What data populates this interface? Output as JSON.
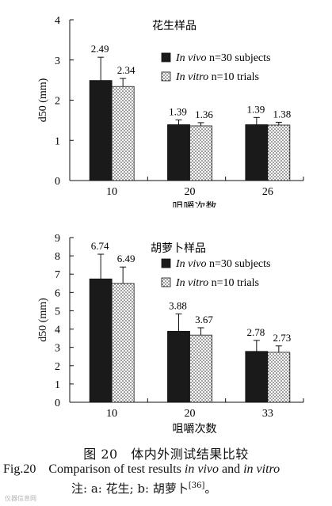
{
  "chart_data": [
    {
      "type": "bar",
      "title": "花生样品",
      "xlabel": "咀嚼次数",
      "ylabel": "d50 (mm)",
      "ylim": [
        0,
        4
      ],
      "yticks": [
        "0",
        "1",
        "2",
        "3",
        "4"
      ],
      "categories": [
        "10",
        "20",
        "26"
      ],
      "legend_position": "top-right",
      "series": [
        {
          "name": "In vivo n=30 subjects",
          "name_italic": "In vivo",
          "name_rest": " n=30 subjects",
          "fill": "solid",
          "color": "#1a1a1a",
          "values": [
            2.49,
            1.39,
            1.39
          ],
          "errors": [
            0.58,
            0.12,
            0.18
          ],
          "labels": [
            "2.49",
            "1.39",
            "1.39"
          ]
        },
        {
          "name": "In vitro n=10 trials",
          "name_italic": "In vitro",
          "name_rest": " n=10 trials",
          "fill": "dotted",
          "color": "#1a1a1a",
          "values": [
            2.34,
            1.36,
            1.38
          ],
          "errors": [
            0.2,
            0.08,
            0.07
          ],
          "labels": [
            "2.34",
            "1.36",
            "1.38"
          ]
        }
      ],
      "grid": false
    },
    {
      "type": "bar",
      "title": "胡萝卜样品",
      "xlabel": "咀嚼次数",
      "ylabel": "d50 (mm)",
      "ylim": [
        0,
        9
      ],
      "yticks": [
        "0",
        "1",
        "2",
        "3",
        "4",
        "5",
        "6",
        "7",
        "8",
        "9"
      ],
      "categories": [
        "10",
        "20",
        "33"
      ],
      "legend_position": "top-right",
      "series": [
        {
          "name": "In vivo n=30 subjects",
          "name_italic": "In vivo",
          "name_rest": " n=30 subjects",
          "fill": "solid",
          "color": "#1a1a1a",
          "values": [
            6.74,
            3.88,
            2.78
          ],
          "errors": [
            1.35,
            0.95,
            0.6
          ],
          "labels": [
            "6.74",
            "3.88",
            "2.78"
          ]
        },
        {
          "name": "In vitro n=10 trials",
          "name_italic": "In vitro",
          "name_rest": " n=10 trials",
          "fill": "dotted",
          "color": "#1a1a1a",
          "values": [
            6.49,
            3.67,
            2.73
          ],
          "errors": [
            0.9,
            0.4,
            0.35
          ],
          "labels": [
            "6.49",
            "3.67",
            "2.73"
          ]
        }
      ],
      "grid": false
    }
  ],
  "caption": {
    "cn": "图 20　体内外测试结果比较",
    "en_prefix": "Fig.20",
    "en_text_1": "Comparison of test results ",
    "en_italic_1": "in vivo",
    "en_text_2": " and ",
    "en_italic_2": "in vitro",
    "note": "注: a: 花生; b: 胡萝卜",
    "note_ref": "[36]",
    "note_end": "。"
  },
  "watermark": "仪器信息网"
}
